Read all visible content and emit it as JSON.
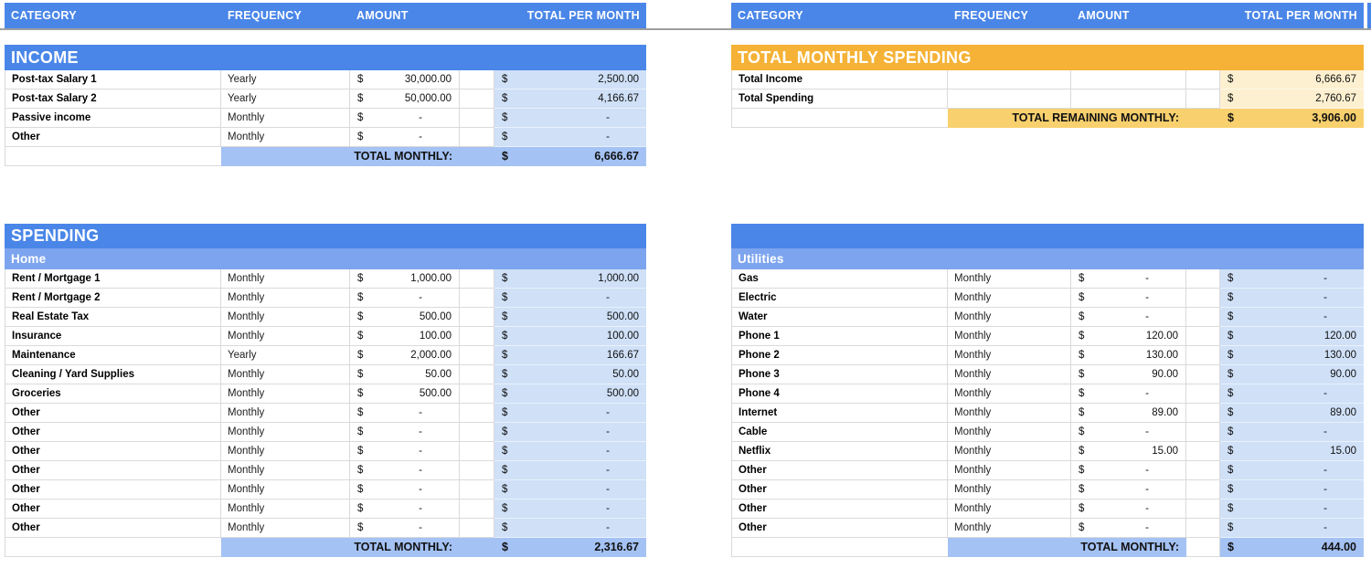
{
  "currency_symbol": "$",
  "columns": [
    "CATEGORY",
    "FREQUENCY",
    "AMOUNT",
    "TOTAL PER MONTH"
  ],
  "colors": {
    "header_blue": "#4a86e8",
    "subsection_blue": "#7da4ee",
    "total_row_blue": "#a4c2f4",
    "light_blue_column": "#cfe0f7",
    "orange_header": "#f5b236",
    "orange_band": "#f8d06e",
    "cream_column": "#fdf0d0",
    "divider_gray": "#9e9e9e"
  },
  "left": {
    "income": {
      "title": "INCOME",
      "rows": [
        {
          "category": "Post-tax Salary 1",
          "frequency": "Yearly",
          "amount": "30,000.00",
          "total": "2,500.00"
        },
        {
          "category": "Post-tax Salary 2",
          "frequency": "Yearly",
          "amount": "50,000.00",
          "total": "4,166.67"
        },
        {
          "category": "Passive income",
          "frequency": "Monthly",
          "amount": "-",
          "total": "-"
        },
        {
          "category": "Other",
          "frequency": "Monthly",
          "amount": "-",
          "total": "-"
        }
      ],
      "total_label": "TOTAL MONTHLY:",
      "total_value": "6,666.67"
    },
    "spending": {
      "title": "SPENDING",
      "subsection": "Home",
      "rows": [
        {
          "category": "Rent / Mortgage 1",
          "frequency": "Monthly",
          "amount": "1,000.00",
          "total": "1,000.00"
        },
        {
          "category": "Rent / Mortgage 2",
          "frequency": "Monthly",
          "amount": "-",
          "total": "-"
        },
        {
          "category": "Real Estate Tax",
          "frequency": "Monthly",
          "amount": "500.00",
          "total": "500.00"
        },
        {
          "category": "Insurance",
          "frequency": "Monthly",
          "amount": "100.00",
          "total": "100.00"
        },
        {
          "category": "Maintenance",
          "frequency": "Yearly",
          "amount": "2,000.00",
          "total": "166.67"
        },
        {
          "category": "Cleaning / Yard Supplies",
          "frequency": "Monthly",
          "amount": "50.00",
          "total": "50.00"
        },
        {
          "category": "Groceries",
          "frequency": "Monthly",
          "amount": "500.00",
          "total": "500.00"
        },
        {
          "category": "Other",
          "frequency": "Monthly",
          "amount": "-",
          "total": "-"
        },
        {
          "category": "Other",
          "frequency": "Monthly",
          "amount": "-",
          "total": "-"
        },
        {
          "category": "Other",
          "frequency": "Monthly",
          "amount": "-",
          "total": "-"
        },
        {
          "category": "Other",
          "frequency": "Monthly",
          "amount": "-",
          "total": "-"
        },
        {
          "category": "Other",
          "frequency": "Monthly",
          "amount": "-",
          "total": "-"
        },
        {
          "category": "Other",
          "frequency": "Monthly",
          "amount": "-",
          "total": "-"
        },
        {
          "category": "Other",
          "frequency": "Monthly",
          "amount": "-",
          "total": "-"
        }
      ],
      "total_label": "TOTAL MONTHLY:",
      "total_value": "2,316.67"
    }
  },
  "right": {
    "summary": {
      "title": "TOTAL MONTHLY SPENDING",
      "rows": [
        {
          "category": "Total Income",
          "frequency": "",
          "amount": "",
          "total": "6,666.67"
        },
        {
          "category": "Total Spending",
          "frequency": "",
          "amount": "",
          "total": "2,760.67"
        }
      ],
      "total_label": "TOTAL REMAINING MONTHLY:",
      "total_value": "3,906.00"
    },
    "utilities": {
      "title": "",
      "subsection": "Utilities",
      "rows": [
        {
          "category": "Gas",
          "frequency": "Monthly",
          "amount": "-",
          "total": "-"
        },
        {
          "category": "Electric",
          "frequency": "Monthly",
          "amount": "-",
          "total": "-"
        },
        {
          "category": "Water",
          "frequency": "Monthly",
          "amount": "-",
          "total": "-"
        },
        {
          "category": "Phone 1",
          "frequency": "Monthly",
          "amount": "120.00",
          "total": "120.00"
        },
        {
          "category": "Phone 2",
          "frequency": "Monthly",
          "amount": "130.00",
          "total": "130.00"
        },
        {
          "category": "Phone 3",
          "frequency": "Monthly",
          "amount": "90.00",
          "total": "90.00"
        },
        {
          "category": "Phone 4",
          "frequency": "Monthly",
          "amount": "-",
          "total": "-"
        },
        {
          "category": "Internet",
          "frequency": "Monthly",
          "amount": "89.00",
          "total": "89.00"
        },
        {
          "category": "Cable",
          "frequency": "Monthly",
          "amount": "-",
          "total": "-"
        },
        {
          "category": "Netflix",
          "frequency": "Monthly",
          "amount": "15.00",
          "total": "15.00"
        },
        {
          "category": "Other",
          "frequency": "Monthly",
          "amount": "-",
          "total": "-"
        },
        {
          "category": "Other",
          "frequency": "Monthly",
          "amount": "-",
          "total": "-"
        },
        {
          "category": "Other",
          "frequency": "Monthly",
          "amount": "-",
          "total": "-"
        },
        {
          "category": "Other",
          "frequency": "Monthly",
          "amount": "-",
          "total": "-"
        }
      ],
      "total_label": "TOTAL MONTHLY:",
      "total_value": "444.00"
    }
  }
}
